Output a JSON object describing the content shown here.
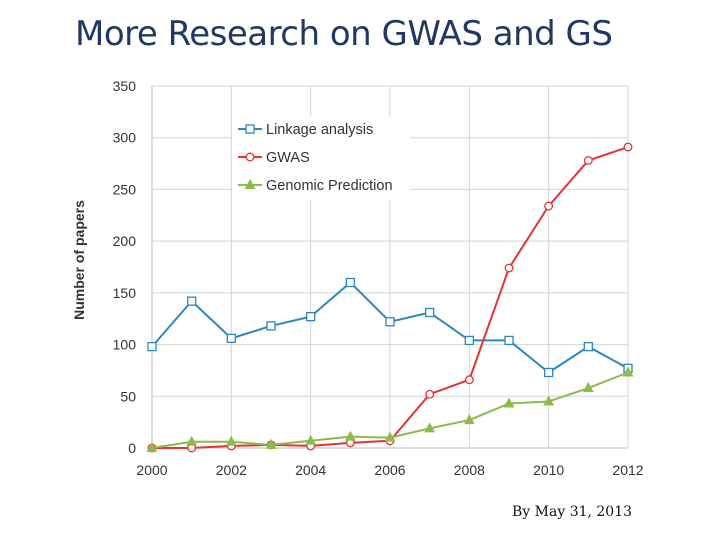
{
  "slide": {
    "title": "More Research on GWAS and GS",
    "footnote": "By May 31, 2013"
  },
  "chart_data": {
    "type": "line",
    "title": "",
    "xlabel": "",
    "ylabel": "Number of papers",
    "x": [
      2000,
      2001,
      2002,
      2003,
      2004,
      2005,
      2006,
      2007,
      2008,
      2009,
      2010,
      2011,
      2012
    ],
    "xlim": [
      2000,
      2012
    ],
    "ylim": [
      0,
      350
    ],
    "x_ticks": [
      2000,
      2002,
      2004,
      2006,
      2008,
      2010,
      2012
    ],
    "y_ticks": [
      0,
      50,
      100,
      150,
      200,
      250,
      300,
      350
    ],
    "grid": true,
    "legend_position": "top-left",
    "series": [
      {
        "name": "Linkage analysis",
        "color": "#2e86c1",
        "marker": "square",
        "values": [
          98,
          142,
          106,
          118,
          127,
          160,
          122,
          131,
          104,
          104,
          73,
          98,
          77
        ]
      },
      {
        "name": "GWAS",
        "color": "#e53333",
        "marker": "circle",
        "values": [
          0,
          0,
          2,
          3,
          2,
          5,
          7,
          52,
          66,
          174,
          234,
          278,
          291
        ]
      },
      {
        "name": "Genomic Prediction",
        "color": "#8dba4c",
        "marker": "triangle",
        "values": [
          0,
          6,
          6,
          3,
          7,
          11,
          10,
          19,
          27,
          43,
          45,
          58,
          73
        ]
      }
    ]
  }
}
